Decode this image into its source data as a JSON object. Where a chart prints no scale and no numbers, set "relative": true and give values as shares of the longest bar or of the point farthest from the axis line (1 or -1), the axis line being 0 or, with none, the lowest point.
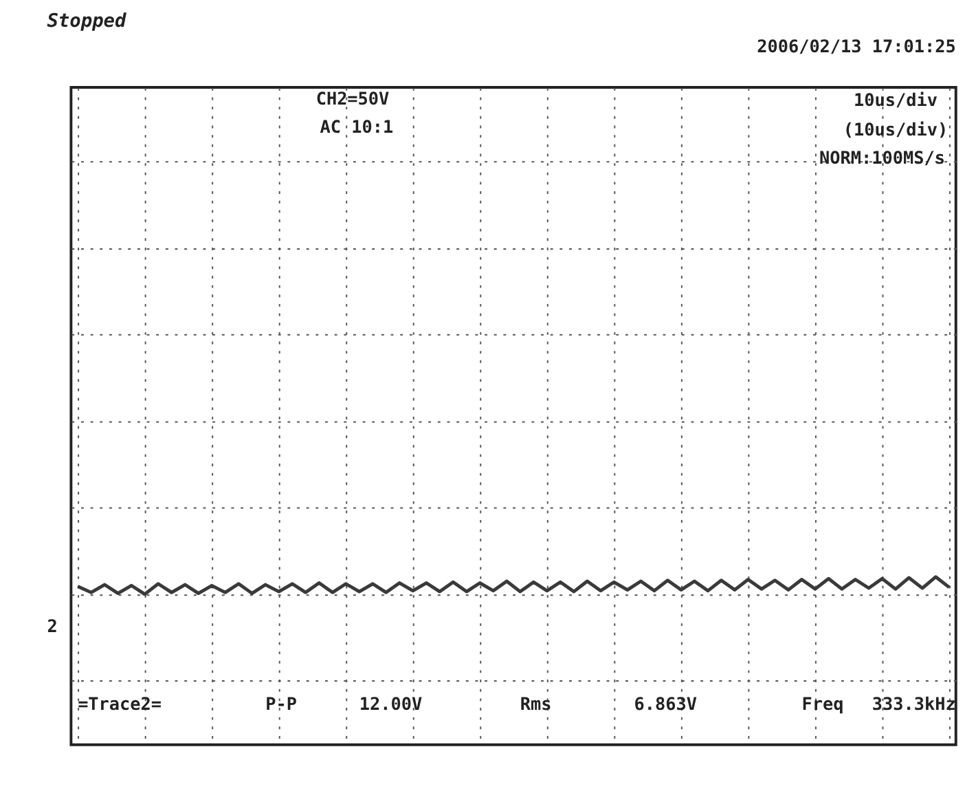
{
  "chart_data": {
    "type": "line",
    "title": "Stopped",
    "relative": true,
    "grid": true,
    "categories": [
      null,
      null,
      null,
      null,
      null,
      null,
      null,
      null,
      null,
      null,
      null,
      null,
      null,
      null,
      null,
      null,
      null,
      null,
      null,
      null,
      null,
      null,
      null,
      null,
      null,
      null,
      null,
      null,
      null,
      null,
      null,
      null,
      null,
      null,
      null,
      null,
      null,
      null,
      null,
      null,
      null,
      null,
      null,
      null,
      null,
      null,
      null,
      null,
      null,
      null,
      null,
      null,
      null,
      null,
      null,
      null,
      null,
      null,
      null,
      null,
      null,
      null,
      null,
      null,
      null,
      null
    ],
    "series": [
      {
        "color": "#3a3a3a",
        "values": [
          0.45,
          0.1,
          0.55,
          0.05,
          0.5,
          0.0,
          0.6,
          0.1,
          0.55,
          0.05,
          0.5,
          0.1,
          0.6,
          0.05,
          0.55,
          0.15,
          0.6,
          0.1,
          0.65,
          0.1,
          0.6,
          0.15,
          0.6,
          0.1,
          0.65,
          0.2,
          0.65,
          0.15,
          0.7,
          0.15,
          0.65,
          0.2,
          0.75,
          0.15,
          0.7,
          0.2,
          0.7,
          0.15,
          0.75,
          0.2,
          0.7,
          0.25,
          0.75,
          0.2,
          0.8,
          0.25,
          0.75,
          0.2,
          0.8,
          0.25,
          0.85,
          0.3,
          0.8,
          0.25,
          0.85,
          0.3,
          0.9,
          0.3,
          0.85,
          0.35,
          0.9,
          0.3,
          0.95,
          0.35,
          1.0,
          0.4
        ]
      }
    ],
    "annotations": [
      "CH2=50V",
      "AC  10:1",
      "10us/div",
      "(10us/div)",
      "NORM:100MS/s",
      "2006/02/13  17:01:25",
      "=Trace2=",
      "P-P",
      "12.00V",
      "Rms",
      "6.863V",
      "Freq",
      "333.3kHz",
      "2"
    ]
  }
}
